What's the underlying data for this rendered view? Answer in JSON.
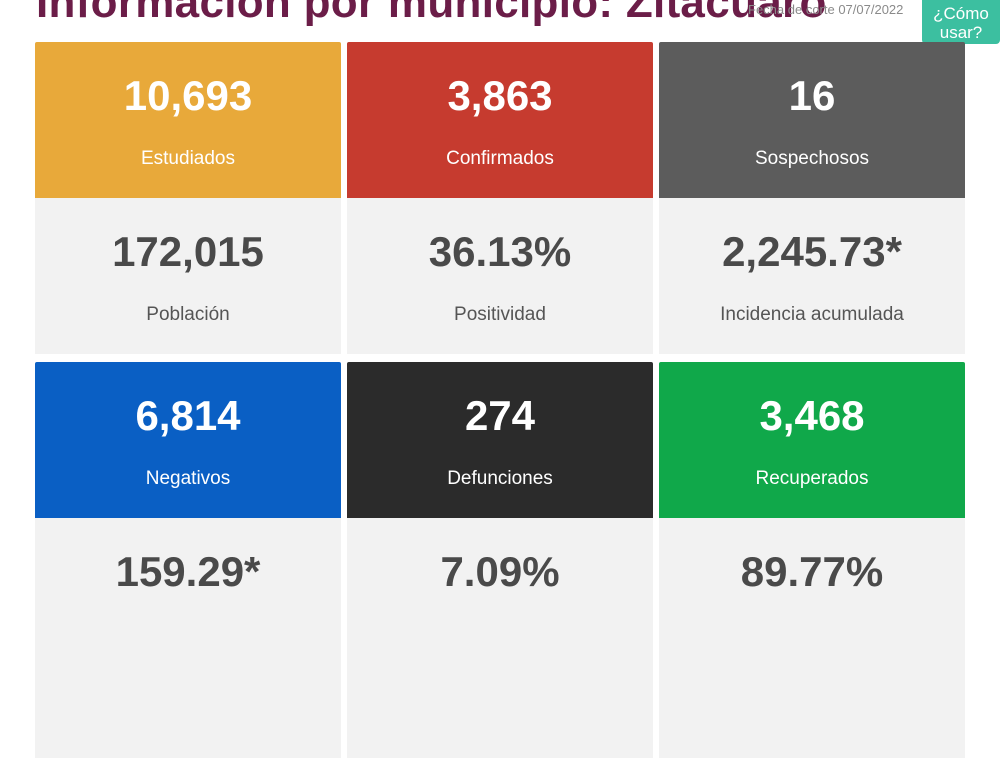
{
  "header": {
    "title": "Información por municipio: Zitácuaro",
    "cutoff": "Fecha de corte 07/07/2022",
    "help_button": "¿Cómo usar?"
  },
  "colors": {
    "estudiados": "#e8a93a",
    "confirmados": "#c63b2f",
    "sospechosos": "#5c5c5c",
    "negativos": "#0a5fc4",
    "defunciones": "#2b2b2b",
    "recuperados": "#10a84a",
    "title": "#6b1d48",
    "help_button": "#3cbfa0"
  },
  "cards": {
    "estudiados": {
      "value": "10,693",
      "label": "Estudiados"
    },
    "confirmados": {
      "value": "3,863",
      "label": "Confirmados"
    },
    "sospechosos": {
      "value": "16",
      "label": "Sospechosos"
    },
    "poblacion": {
      "value": "172,015",
      "label": "Población"
    },
    "positividad": {
      "value": "36.13%",
      "label": "Positividad"
    },
    "incidencia": {
      "value": "2,245.73*",
      "label": "Incidencia acumulada"
    },
    "negativos": {
      "value": "6,814",
      "label": "Negativos"
    },
    "defunciones": {
      "value": "274",
      "label": "Defunciones"
    },
    "recuperados": {
      "value": "3,468",
      "label": "Recuperados"
    },
    "negativos_rate": {
      "value": "159.29*"
    },
    "defunciones_rate": {
      "value": "7.09%"
    },
    "recuperados_rate": {
      "value": "89.77%"
    }
  }
}
